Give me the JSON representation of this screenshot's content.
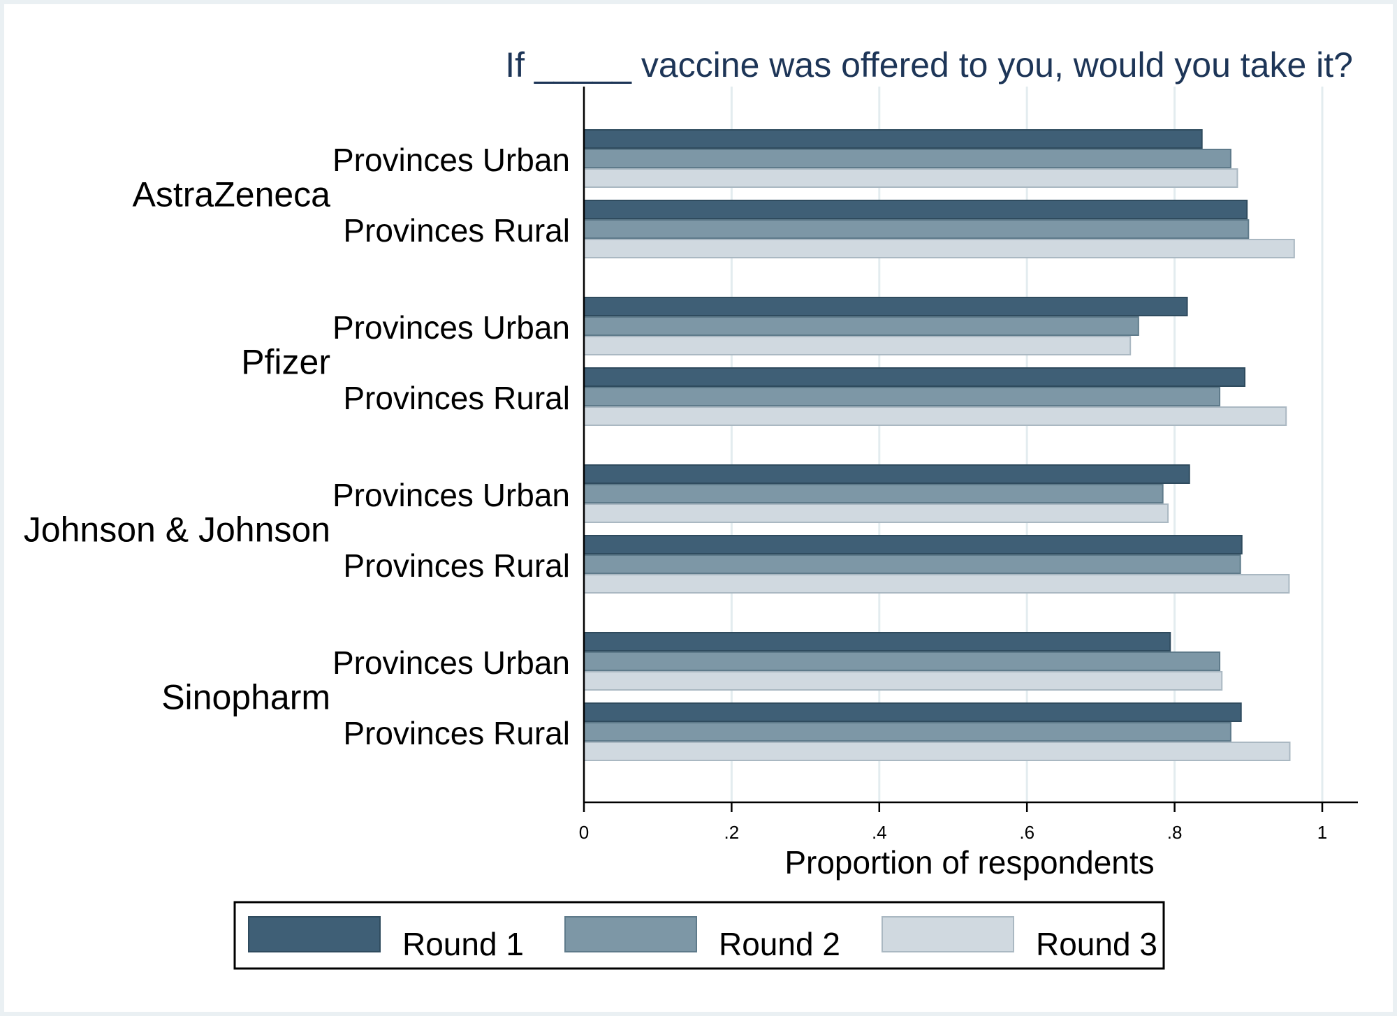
{
  "chart_data": {
    "type": "bar",
    "orientation": "horizontal",
    "title": "If _____ vaccine was offered to you, would you take it?",
    "xlabel": "Proportion of respondents",
    "ylabel": "",
    "xlim": [
      0,
      1.05
    ],
    "xticks": [
      0,
      0.2,
      0.4,
      0.6,
      0.8,
      1
    ],
    "xtick_labels": [
      "0",
      ".2",
      ".4",
      ".6",
      ".8",
      "1"
    ],
    "grid": true,
    "legend_position": "bottom",
    "series": [
      {
        "name": "Round 1",
        "color": "#3f5f76"
      },
      {
        "name": "Round 2",
        "color": "#7d97a6"
      },
      {
        "name": "Round 3",
        "color": "#d0d9e0"
      }
    ],
    "groups": [
      {
        "name": "AstraZeneca",
        "rows": [
          {
            "label": "Provinces Urban",
            "values": [
              0.837,
              0.876,
              0.885
            ]
          },
          {
            "label": "Provinces Rural",
            "values": [
              0.898,
              0.9,
              0.962
            ]
          }
        ]
      },
      {
        "name": "Pfizer",
        "rows": [
          {
            "label": "Provinces Urban",
            "values": [
              0.817,
              0.751,
              0.74
            ]
          },
          {
            "label": "Provinces Rural",
            "values": [
              0.895,
              0.861,
              0.951
            ]
          }
        ]
      },
      {
        "name": "Johnson & Johnson",
        "rows": [
          {
            "label": "Provinces Urban",
            "values": [
              0.82,
              0.784,
              0.791
            ]
          },
          {
            "label": "Provinces Rural",
            "values": [
              0.891,
              0.889,
              0.955
            ]
          }
        ]
      },
      {
        "name": "Sinopharm",
        "rows": [
          {
            "label": "Provinces Urban",
            "values": [
              0.794,
              0.861,
              0.864
            ]
          },
          {
            "label": "Provinces Rural",
            "values": [
              0.89,
              0.876,
              0.956
            ]
          }
        ]
      }
    ]
  }
}
